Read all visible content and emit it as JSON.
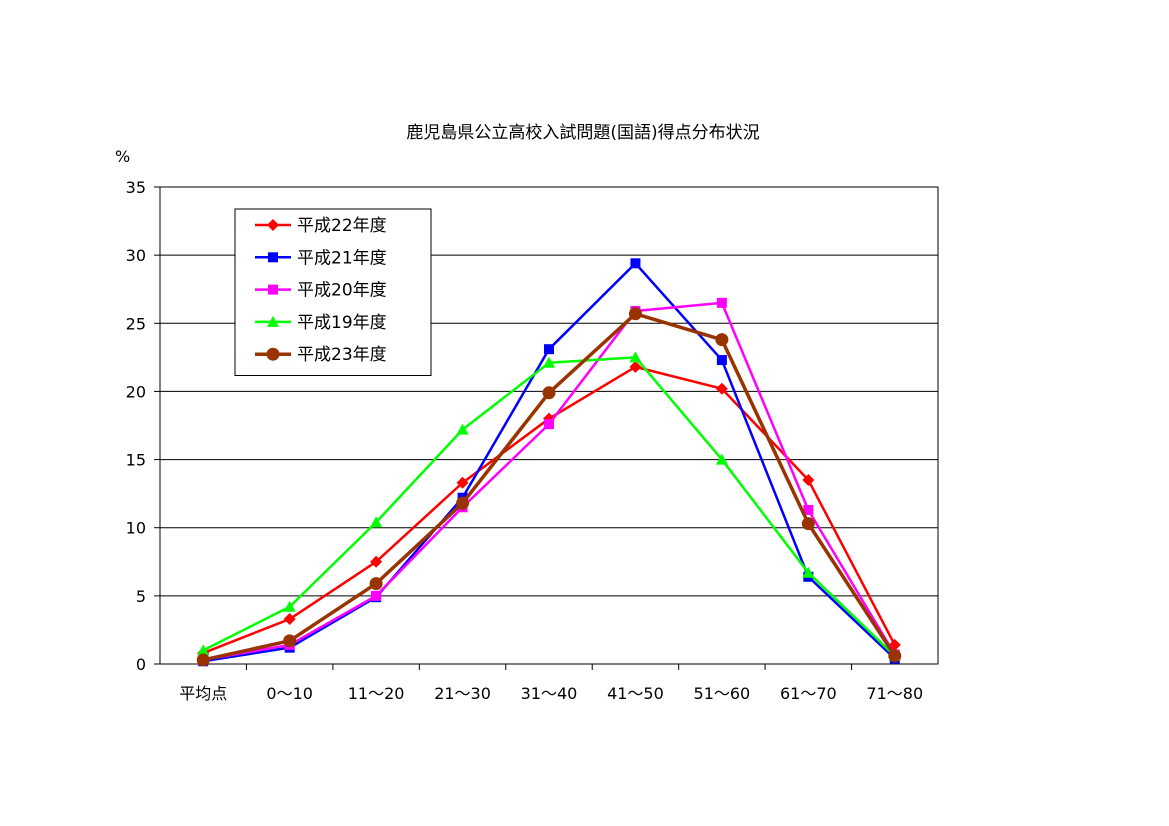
{
  "chart_data": {
    "type": "line",
    "title": "鹿児島県公立高校入試問題(国語)得点分布状況",
    "ylabel": "%",
    "xlabel": "",
    "ylim": [
      0,
      35
    ],
    "yticks": [
      0,
      5,
      10,
      15,
      20,
      25,
      30,
      35
    ],
    "grid": true,
    "legend_position": "top-left",
    "categories": [
      "平均点",
      "0〜10",
      "11〜20",
      "21〜30",
      "31〜40",
      "41〜50",
      "51〜60",
      "61〜70",
      "71〜80"
    ],
    "series": [
      {
        "name": "平成22年度",
        "color": "#ff0000",
        "marker": "diamond",
        "values": [
          0.8,
          3.3,
          7.5,
          13.3,
          18.0,
          21.8,
          20.2,
          13.5,
          1.4
        ]
      },
      {
        "name": "平成21年度",
        "color": "#0000ff",
        "marker": "square",
        "values": [
          0.2,
          1.2,
          4.9,
          12.2,
          23.1,
          29.4,
          22.3,
          6.4,
          0.4
        ]
      },
      {
        "name": "平成20年度",
        "color": "#ff00ff",
        "marker": "square",
        "values": [
          0.3,
          1.4,
          5.0,
          11.5,
          17.6,
          25.9,
          26.5,
          11.3,
          0.7
        ]
      },
      {
        "name": "平成19年度",
        "color": "#00ff00",
        "marker": "triangle",
        "values": [
          1.0,
          4.2,
          10.4,
          17.2,
          22.1,
          22.5,
          15.0,
          6.7,
          0.6
        ]
      },
      {
        "name": "平成23年度",
        "color": "#993300",
        "marker": "circle",
        "values": [
          0.3,
          1.7,
          5.9,
          11.8,
          19.9,
          25.7,
          23.8,
          10.3,
          0.6
        ]
      }
    ]
  }
}
